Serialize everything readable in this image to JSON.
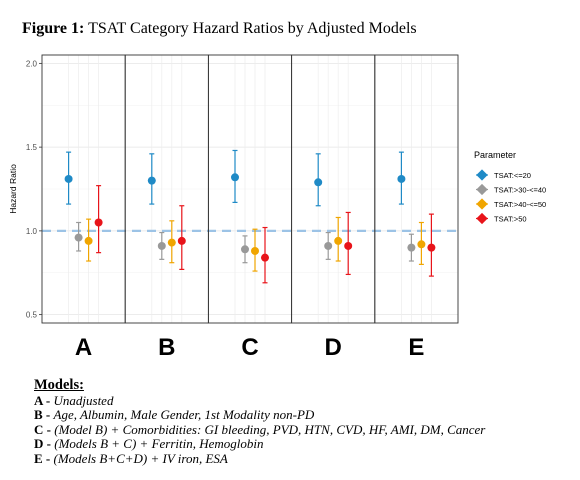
{
  "figure": {
    "label": "Figure 1:",
    "title": "TSAT Category Hazard Ratios by Adjusted Models"
  },
  "chart_data": {
    "type": "scatter",
    "subtype": "forest-plot-with-error-bars",
    "ylabel": "Hazard Ratio",
    "ylim": [
      0.45,
      2.05
    ],
    "yticks": [
      0.5,
      1.0,
      1.5,
      2.0
    ],
    "ytick_labels": [
      "0.5",
      "1.0",
      "1.5",
      "2.0"
    ],
    "reference_line": 1.0,
    "grid": true,
    "panels": [
      "A",
      "B",
      "C",
      "D",
      "E"
    ],
    "legend": {
      "title": "Parameter",
      "position": "right"
    },
    "series": [
      {
        "name": "TSAT:<=20",
        "color": "#1f8ac6",
        "values": [
          1.31,
          1.3,
          1.32,
          1.29,
          1.31
        ],
        "lower": [
          1.16,
          1.16,
          1.17,
          1.15,
          1.16
        ],
        "upper": [
          1.47,
          1.46,
          1.48,
          1.46,
          1.47
        ]
      },
      {
        "name": "TSAT:>30-<=40",
        "color": "#999999",
        "values": [
          0.96,
          0.91,
          0.89,
          0.91,
          0.9
        ],
        "lower": [
          0.88,
          0.83,
          0.81,
          0.83,
          0.82
        ],
        "upper": [
          1.05,
          0.99,
          0.97,
          0.99,
          0.98
        ]
      },
      {
        "name": "TSAT:>40-<=50",
        "color": "#f0a500",
        "values": [
          0.94,
          0.93,
          0.88,
          0.94,
          0.92
        ],
        "lower": [
          0.82,
          0.81,
          0.76,
          0.82,
          0.8
        ],
        "upper": [
          1.07,
          1.06,
          1.01,
          1.08,
          1.05
        ]
      },
      {
        "name": "TSAT:>50",
        "color": "#e8141a",
        "values": [
          1.05,
          0.94,
          0.84,
          0.91,
          0.9
        ],
        "lower": [
          0.87,
          0.77,
          0.69,
          0.74,
          0.73
        ],
        "upper": [
          1.27,
          1.15,
          1.02,
          1.11,
          1.1
        ]
      }
    ]
  },
  "notes": {
    "heading": "Models:",
    "items": [
      {
        "key": "A",
        "sep": " - ",
        "text": "Unadjusted"
      },
      {
        "key": "B",
        "sep": " - ",
        "text": "Age, Albumin, Male Gender, 1st Modality non-PD"
      },
      {
        "key": "C",
        "sep": " - ",
        "text": "(Model B) + Comorbidities: GI bleeding, PVD, HTN, CVD, HF, AMI, DM, Cancer"
      },
      {
        "key": "D",
        "sep": " - ",
        "text": "(Models B + C) + Ferritin, Hemoglobin"
      },
      {
        "key": "E",
        "sep": " - ",
        "text": "(Models B+C+D)  + IV iron, ESA"
      }
    ]
  }
}
